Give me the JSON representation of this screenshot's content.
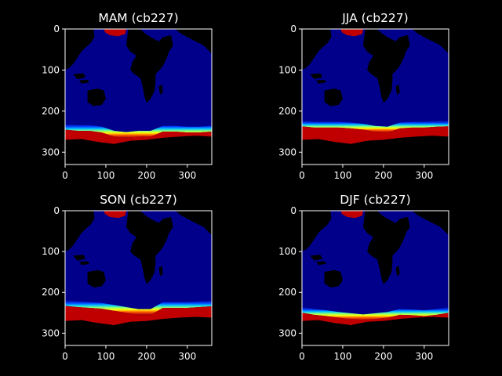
{
  "chart_data": [
    {
      "type": "heatmap",
      "title": "MAM (cb227)",
      "xlim": [
        0,
        360
      ],
      "ylim": [
        330,
        0
      ],
      "xticks": [
        0,
        100,
        200,
        300
      ],
      "yticks": [
        0,
        100,
        200,
        300
      ],
      "colormap": "jet",
      "ice_edge_lat_index": [
        245,
        248,
        248,
        252,
        262,
        265,
        262,
        262,
        250,
        250,
        252,
        252,
        250
      ],
      "northern_ice_present": true
    },
    {
      "type": "heatmap",
      "title": "JJA (cb227)",
      "xlim": [
        0,
        360
      ],
      "ylim": [
        330,
        0
      ],
      "xticks": [
        0,
        100,
        200,
        300
      ],
      "yticks": [
        0,
        100,
        200,
        300
      ],
      "colormap": "jet",
      "ice_edge_lat_index": [
        237,
        240,
        240,
        240,
        242,
        245,
        250,
        252,
        242,
        240,
        240,
        238,
        237
      ],
      "northern_ice_present": true
    },
    {
      "type": "heatmap",
      "title": "SON (cb227)",
      "xlim": [
        0,
        360
      ],
      "ylim": [
        330,
        0
      ],
      "xticks": [
        0,
        100,
        200,
        300
      ],
      "yticks": [
        0,
        100,
        200,
        300
      ],
      "colormap": "jet",
      "ice_edge_lat_index": [
        233,
        236,
        238,
        240,
        245,
        250,
        255,
        255,
        238,
        238,
        238,
        236,
        234
      ],
      "northern_ice_present": true
    },
    {
      "type": "heatmap",
      "title": "DJF (cb227)",
      "xlim": [
        0,
        360
      ],
      "ylim": [
        330,
        0
      ],
      "xticks": [
        0,
        100,
        200,
        300
      ],
      "yticks": [
        0,
        100,
        200,
        300
      ],
      "colormap": "jet",
      "ice_edge_lat_index": [
        250,
        255,
        258,
        262,
        265,
        268,
        265,
        262,
        255,
        256,
        258,
        255,
        250
      ],
      "northern_ice_present": true
    }
  ],
  "colors": {
    "background": "#000000",
    "ocean": "#00008b",
    "land": "#000000",
    "frame": "#ffffff",
    "text": "#ffffff"
  }
}
